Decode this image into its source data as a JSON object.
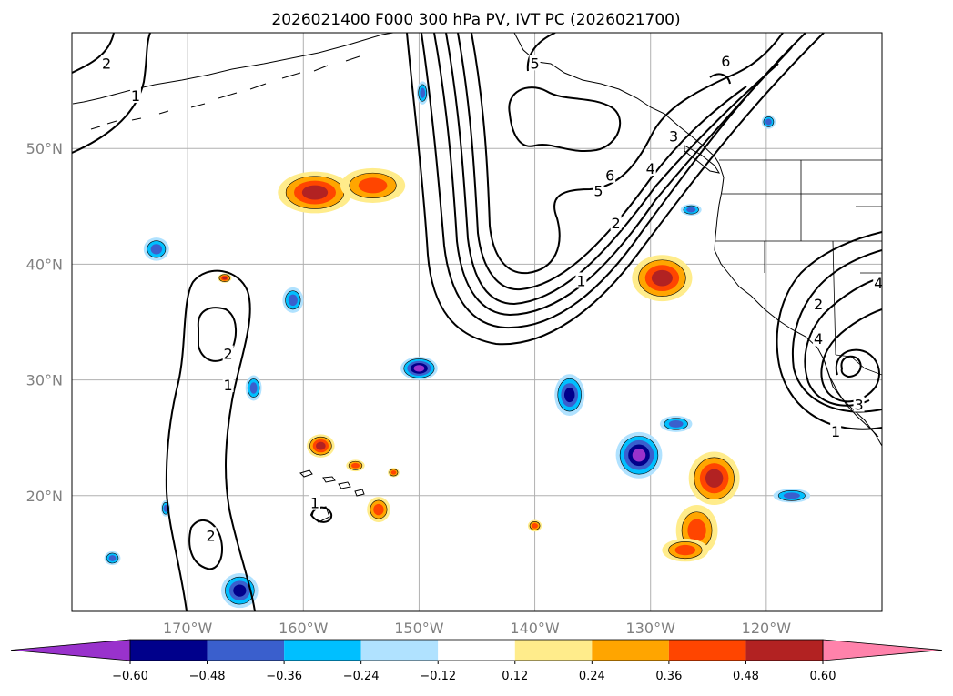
{
  "title": "2026021400 F000 300 hPa PV, IVT PC (2026021700)",
  "map": {
    "lon_range": [
      -180,
      -110
    ],
    "lat_range": [
      10,
      60
    ],
    "lon_ticks": [
      {
        "value": -170,
        "label": "170°W"
      },
      {
        "value": -160,
        "label": "160°W"
      },
      {
        "value": -150,
        "label": "150°W"
      },
      {
        "value": -140,
        "label": "140°W"
      },
      {
        "value": -130,
        "label": "130°W"
      },
      {
        "value": -120,
        "label": "120°W"
      }
    ],
    "lat_ticks": [
      {
        "value": 20,
        "label": "20°N"
      },
      {
        "value": 30,
        "label": "30°N"
      },
      {
        "value": 40,
        "label": "40°N"
      },
      {
        "value": 50,
        "label": "50°N"
      }
    ],
    "gridlines": true
  },
  "colorbar": {
    "colors": [
      "#9932cc",
      "#00008b",
      "#3a5fcd",
      "#00bfff",
      "#b0e2ff",
      "#ffffff",
      "#ffec8b",
      "#ffa500",
      "#ff4500",
      "#b22222",
      "#ff82ab"
    ],
    "ticks": [
      "−0.60",
      "−0.48",
      "−0.36",
      "−0.24",
      "−0.12",
      "0.12",
      "0.24",
      "0.36",
      "0.48",
      "0.60"
    ]
  },
  "contour_labels": [
    {
      "text": "2",
      "lon": -177.0,
      "lat": 57.3
    },
    {
      "text": "1",
      "lon": -174.5,
      "lat": 54.5
    },
    {
      "text": "5",
      "lon": -140.0,
      "lat": 57.3
    },
    {
      "text": "6",
      "lon": -123.5,
      "lat": 57.5
    },
    {
      "text": "6",
      "lon": -133.5,
      "lat": 47.6
    },
    {
      "text": "5",
      "lon": -134.5,
      "lat": 46.3
    },
    {
      "text": "4",
      "lon": -130.0,
      "lat": 48.2
    },
    {
      "text": "3",
      "lon": -128.0,
      "lat": 51.0
    },
    {
      "text": "2",
      "lon": -133.0,
      "lat": 43.5
    },
    {
      "text": "1",
      "lon": -136.0,
      "lat": 38.5
    },
    {
      "text": "2",
      "lon": -166.5,
      "lat": 32.2
    },
    {
      "text": "1",
      "lon": -166.5,
      "lat": 29.5
    },
    {
      "text": "2",
      "lon": -168.0,
      "lat": 16.5
    },
    {
      "text": "1",
      "lon": -159.0,
      "lat": 19.3
    },
    {
      "text": "2",
      "lon": -115.5,
      "lat": 36.5
    },
    {
      "text": "4",
      "lon": -115.5,
      "lat": 33.5
    },
    {
      "text": "3",
      "lon": -112.0,
      "lat": 27.8
    },
    {
      "text": "1",
      "lon": -114.0,
      "lat": 25.5
    },
    {
      "text": "4",
      "lon": -110.3,
      "lat": 38.3
    }
  ],
  "pc_blobs": [
    {
      "lon": -159,
      "lat": 46.2,
      "rx": 3.2,
      "ry": 1.8,
      "class": "pos",
      "level": 4
    },
    {
      "lon": -154,
      "lat": 46.8,
      "rx": 2.8,
      "ry": 1.5,
      "class": "pos",
      "level": 3
    },
    {
      "lon": -129,
      "lat": 38.8,
      "rx": 2.6,
      "ry": 2.0,
      "class": "pos",
      "level": 4
    },
    {
      "lon": -124.5,
      "lat": 21.5,
      "rx": 2.2,
      "ry": 2.3,
      "class": "pos",
      "level": 4
    },
    {
      "lon": -126,
      "lat": 17.0,
      "rx": 1.8,
      "ry": 2.2,
      "class": "pos",
      "level": 3
    },
    {
      "lon": -127,
      "lat": 15.3,
      "rx": 2.0,
      "ry": 1.0,
      "class": "pos",
      "level": 3
    },
    {
      "lon": -158.5,
      "lat": 24.3,
      "rx": 1.2,
      "ry": 1.0,
      "class": "pos",
      "level": 4
    },
    {
      "lon": -155.5,
      "lat": 22.6,
      "rx": 0.8,
      "ry": 0.5,
      "class": "pos",
      "level": 3
    },
    {
      "lon": -153.5,
      "lat": 18.8,
      "rx": 1.0,
      "ry": 1.1,
      "class": "pos",
      "level": 3
    },
    {
      "lon": -152.2,
      "lat": 22.0,
      "rx": 0.5,
      "ry": 0.4,
      "class": "pos",
      "level": 3
    },
    {
      "lon": -166.8,
      "lat": 38.8,
      "rx": 0.6,
      "ry": 0.4,
      "class": "pos",
      "level": 4
    },
    {
      "lon": -140.0,
      "lat": 17.4,
      "rx": 0.6,
      "ry": 0.5,
      "class": "pos",
      "level": 3
    },
    {
      "lon": -131,
      "lat": 23.5,
      "rx": 2.0,
      "ry": 2.0,
      "class": "neg",
      "level": 5
    },
    {
      "lon": -137,
      "lat": 28.7,
      "rx": 1.3,
      "ry": 1.8,
      "class": "neg",
      "level": 4
    },
    {
      "lon": -127.8,
      "lat": 26.2,
      "rx": 1.4,
      "ry": 0.7,
      "class": "neg",
      "level": 3
    },
    {
      "lon": -117.8,
      "lat": 20.0,
      "rx": 1.6,
      "ry": 0.6,
      "class": "neg",
      "level": 3
    },
    {
      "lon": -150.0,
      "lat": 31.0,
      "rx": 1.6,
      "ry": 1.0,
      "class": "neg",
      "level": 5
    },
    {
      "lon": -172.7,
      "lat": 41.3,
      "rx": 1.1,
      "ry": 1.0,
      "class": "neg",
      "level": 3
    },
    {
      "lon": -160.9,
      "lat": 36.9,
      "rx": 0.9,
      "ry": 1.1,
      "class": "neg",
      "level": 3
    },
    {
      "lon": -164.3,
      "lat": 29.3,
      "rx": 0.7,
      "ry": 1.1,
      "class": "neg",
      "level": 3
    },
    {
      "lon": -165.5,
      "lat": 11.8,
      "rx": 1.6,
      "ry": 1.5,
      "class": "neg",
      "level": 4
    },
    {
      "lon": -149.7,
      "lat": 54.8,
      "rx": 0.5,
      "ry": 1.0,
      "class": "neg",
      "level": 3
    },
    {
      "lon": -126.5,
      "lat": 44.7,
      "rx": 0.9,
      "ry": 0.5,
      "class": "neg",
      "level": 3
    },
    {
      "lon": -119.8,
      "lat": 52.3,
      "rx": 0.6,
      "ry": 0.6,
      "class": "neg",
      "level": 3
    },
    {
      "lon": -171.9,
      "lat": 18.9,
      "rx": 0.4,
      "ry": 0.7,
      "class": "neg",
      "level": 3
    },
    {
      "lon": -176.5,
      "lat": 14.6,
      "rx": 0.7,
      "ry": 0.6,
      "class": "neg",
      "level": 3
    }
  ]
}
